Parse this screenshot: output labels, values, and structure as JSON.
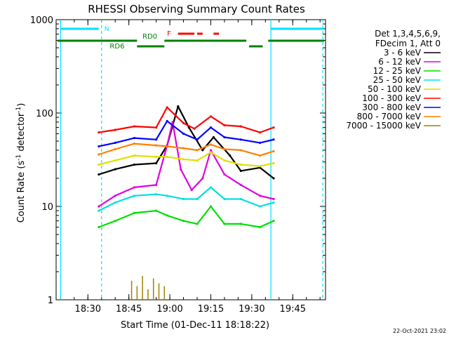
{
  "chart_data": {
    "type": "line",
    "title": "RHESSI Observing Summary Count Rates",
    "xlabel": "Start Time (01-Dec-11 18:18:22)",
    "ylabel_main": "Count Rate (s",
    "ylabel_sup1": "-1",
    "ylabel_mid": " detector",
    "ylabel_sup2": "-1",
    "ylabel_end": ")",
    "y_scale": "log",
    "ylim": [
      1,
      1000
    ],
    "xlim": [
      "18:18:22",
      "19:57:00"
    ],
    "x_ticks": [
      "18:30",
      "18:45",
      "19:00",
      "19:15",
      "19:30",
      "19:45"
    ],
    "y_ticks": [
      "1",
      "10",
      "100",
      "1000"
    ],
    "footer": "22-Oct-2021 23:02",
    "legend": {
      "header": [
        "Det 1,3,4,5,6,9,",
        "FDecim 1, Att 0"
      ],
      "placement": "right"
    },
    "series": [
      {
        "name": "3 - 6 keV",
        "color": "#000000",
        "x": [
          "18:34",
          "18:40",
          "18:47",
          "18:55",
          "18:59",
          "19:03",
          "19:07",
          "19:12",
          "19:16",
          "19:22",
          "19:26",
          "19:33",
          "19:38"
        ],
        "y": [
          22,
          25,
          28,
          29,
          45,
          118,
          70,
          40,
          55,
          35,
          24,
          26,
          20
        ]
      },
      {
        "name": "6 - 12 keV",
        "color": "#e000e0",
        "x": [
          "18:34",
          "18:40",
          "18:47",
          "18:55",
          "18:59",
          "19:01",
          "19:04",
          "19:08",
          "19:12",
          "19:15",
          "19:20",
          "19:26",
          "19:33",
          "19:38"
        ],
        "y": [
          10,
          13,
          16,
          17,
          45,
          80,
          25,
          15,
          20,
          40,
          22,
          17,
          13,
          12
        ]
      },
      {
        "name": "12 - 25 keV",
        "color": "#00e000",
        "x": [
          "18:34",
          "18:40",
          "18:47",
          "18:55",
          "18:59",
          "19:05",
          "19:10",
          "19:15",
          "19:20",
          "19:26",
          "19:33",
          "19:38"
        ],
        "y": [
          6,
          7,
          8.5,
          9,
          8,
          7,
          6.5,
          10,
          6.5,
          6.5,
          6,
          7
        ]
      },
      {
        "name": "25 - 50 keV",
        "color": "#00e0e0",
        "x": [
          "18:34",
          "18:40",
          "18:47",
          "18:55",
          "18:59",
          "19:05",
          "19:10",
          "19:15",
          "19:20",
          "19:26",
          "19:33",
          "19:38"
        ],
        "y": [
          9,
          11,
          13,
          13.5,
          13,
          12,
          12,
          16,
          12,
          12,
          10,
          11
        ]
      },
      {
        "name": "50 - 100 keV",
        "color": "#e0e000",
        "x": [
          "18:34",
          "18:40",
          "18:47",
          "18:55",
          "18:59",
          "19:05",
          "19:10",
          "19:15",
          "19:20",
          "19:26",
          "19:33",
          "19:38"
        ],
        "y": [
          28,
          31,
          35,
          34,
          34,
          32,
          31,
          38,
          31,
          28,
          27,
          29
        ]
      },
      {
        "name": "100 - 300 keV",
        "color": "#ff0000",
        "x": [
          "18:34",
          "18:40",
          "18:47",
          "18:55",
          "18:59",
          "19:05",
          "19:09",
          "19:15",
          "19:20",
          "19:26",
          "19:33",
          "19:38"
        ],
        "y": [
          62,
          66,
          72,
          70,
          115,
          78,
          68,
          92,
          74,
          72,
          62,
          70
        ]
      },
      {
        "name": "300 - 800 keV",
        "color": "#0000ff",
        "x": [
          "18:34",
          "18:40",
          "18:47",
          "18:55",
          "18:59",
          "19:05",
          "19:10",
          "19:15",
          "19:20",
          "19:26",
          "19:33",
          "19:38"
        ],
        "y": [
          44,
          48,
          54,
          52,
          82,
          60,
          52,
          70,
          55,
          52,
          48,
          52
        ]
      },
      {
        "name": "800 - 7000 keV",
        "color": "#ff8000",
        "x": [
          "18:34",
          "18:40",
          "18:47",
          "18:55",
          "18:59",
          "19:05",
          "19:10",
          "19:15",
          "19:20",
          "19:26",
          "19:33",
          "19:38"
        ],
        "y": [
          36,
          41,
          47,
          45,
          44,
          42,
          40,
          46,
          41,
          40,
          35,
          39
        ]
      },
      {
        "name": "7000 - 15000 keV",
        "color": "#a08000",
        "x": [
          "18:46",
          "18:48",
          "18:50",
          "18:52",
          "18:54",
          "18:56",
          "18:58"
        ],
        "y": [
          1.6,
          1.4,
          1.8,
          1.3,
          1.7,
          1.5,
          1.4
        ]
      }
    ],
    "overlays": {
      "cyan_color": "#00e0ff",
      "green_color": "#008000",
      "red_color": "#ff0000",
      "cyan_vlines": [
        "18:20",
        "18:35",
        "19:37",
        "19:56"
      ],
      "labels": {
        "n": "N",
        "rd0": "RD0",
        "rd6": "RD6",
        "f": "F"
      }
    }
  }
}
